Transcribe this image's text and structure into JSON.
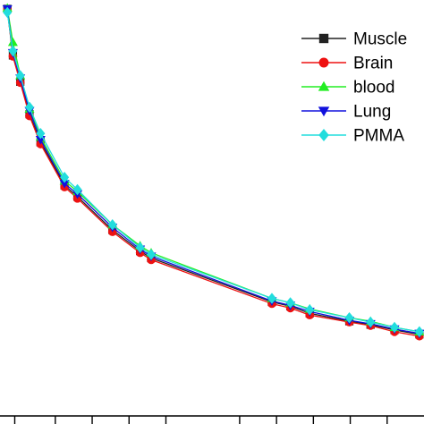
{
  "chart_data": {
    "type": "line",
    "title": "",
    "xlabel": "",
    "ylabel": "",
    "xlim": [
      0,
      46
    ],
    "ylim": [
      0,
      465
    ],
    "legend_position": "top-right",
    "grid": false,
    "x": [
      0.8,
      1.4,
      2.2,
      3.2,
      4.4,
      7.0,
      8.4,
      12.2,
      15.2,
      16.4,
      29.5,
      31.5,
      33.6,
      37.9,
      40.2,
      42.8,
      45.5
    ],
    "series": [
      {
        "name": "Muscle",
        "color": "#222222",
        "marker": "square",
        "values": [
          464,
          411,
          381,
          344,
          312,
          263,
          250,
          212,
          188,
          180,
          130,
          125,
          117,
          108,
          104,
          98,
          93
        ]
      },
      {
        "name": "Brain",
        "color": "#ee1111",
        "marker": "circle",
        "values": [
          463,
          410,
          380,
          342,
          310,
          261,
          248,
          210,
          186,
          178,
          128,
          123,
          115,
          107,
          103,
          96,
          91
        ]
      },
      {
        "name": "blood",
        "color": "#22ee22",
        "marker": "triangle-up",
        "values": [
          465,
          426,
          388,
          350,
          318,
          268,
          256,
          218,
          194,
          186,
          134,
          129,
          122,
          112,
          108,
          101,
          96
        ]
      },
      {
        "name": "Lung",
        "color": "#1111dd",
        "marker": "triangle-down",
        "values": [
          464,
          414,
          385,
          348,
          315,
          265,
          253,
          215,
          190,
          182,
          131,
          126,
          119,
          109,
          105,
          99,
          94
        ]
      },
      {
        "name": "PMMA",
        "color": "#22dddd",
        "marker": "diamond",
        "values": [
          460,
          416,
          388,
          352,
          322,
          272,
          258,
          218,
          192,
          184,
          134,
          129,
          121,
          112,
          107,
          101,
          96
        ]
      }
    ],
    "x_ticks": [
      1.6,
      6.0,
      10.0,
      14.0,
      18.0,
      26.0,
      30.0,
      34.0,
      38.0,
      42.0
    ]
  }
}
